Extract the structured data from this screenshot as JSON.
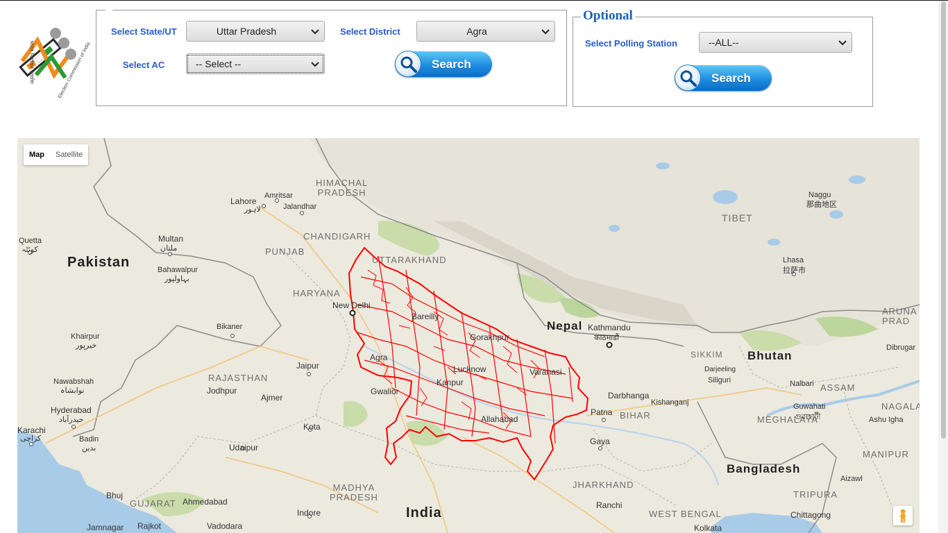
{
  "form": {
    "state_label": "Select State/UT",
    "state_value": "Uttar Pradesh",
    "district_label": "Select District",
    "district_value": "Agra",
    "ac_label": "Select AC",
    "ac_value": "-- Select --",
    "search_label": "Search"
  },
  "optional": {
    "legend": "Optional",
    "polling_label": "Select Polling Station",
    "polling_value": "--ALL--",
    "search_label": "Search"
  },
  "logo": {
    "icon": "eci-logo-icon",
    "text_hindi": "भारत निर्वाचन आयोग",
    "text_english": "Election Commission of India"
  },
  "map": {
    "type_map": "Map",
    "type_satellite": "Satellite",
    "boundary_color": "#ff0000",
    "places": {
      "pakistan": "Pakistan",
      "nepal": "Nepal",
      "bhutan": "Bhutan",
      "india": "India",
      "bangladesh": "Bangladesh",
      "himachal": "HIMACHAL\nPRADESH",
      "chandigarh": "CHANDIGARH",
      "punjab": "PUNJAB",
      "uttarakhand": "UTTARAKHAND",
      "haryana": "HARYANA",
      "rajasthan": "RAJASTHAN",
      "madhya": "MADHYA\nPRADESH",
      "gujarat": "GUJARAT",
      "jharkhand": "JHARKHAND",
      "westbengal": "WEST BENGAL",
      "bihar": "BIHAR",
      "sikkim": "SIKKIM",
      "assam": "ASSAM",
      "meghalaya": "MEGHALAYA",
      "nagaland": "NAGALAND",
      "manipur": "MANIPUR",
      "tripura": "TRIPURA",
      "aruna": "ARUNA\nPRAD",
      "tibet": "TIBET",
      "lahore": "Lahore",
      "lahore_ur": "لاہور",
      "amritsar": "Amritsar",
      "jalandhar": "Jalandhar",
      "multan": "Multan",
      "multan_ur": "ملتان",
      "quetta": "Quetta",
      "quetta_ur": "کوئٹہ",
      "bahawalpur": "Bahawalpur",
      "bahawalpur_ur": "بہاولپور",
      "bikaner": "Bikaner",
      "khairpur": "Khairpur",
      "khairpur_ur": "خیرپور",
      "nawabshah": "Nawabshah",
      "nawabshah_ur": "نوابشاہ",
      "hyderabad": "Hyderabad",
      "hyderabad_ur": "حیدرآباد",
      "karachi": "Karachi",
      "karachi_ur": "کراچی",
      "badin": "Badin",
      "badin_ur": "بدین",
      "jaipur": "Jaipur",
      "jodhpur": "Jodhpur",
      "ajmer": "Ajmer",
      "kota": "Kota",
      "udaipur": "Udaipur",
      "bhuj": "Bhuj",
      "ahmedabad": "Ahmedabad",
      "jamnagar": "Jamnagar",
      "rajkot": "Rajkot",
      "vadodara": "Vadodara",
      "indore": "Indore",
      "gwalior": "Gwalior",
      "newdelhi": "New Delhi",
      "agra": "Agra",
      "kanpur": "Kanpur",
      "lucknow": "Lucknow",
      "gorakhpur": "Gorakhpur",
      "allahabad": "Allahabad",
      "varanasi": "Varanasi",
      "bareilly": "Bareilly",
      "darbhanga": "Darbhanga",
      "patna": "Patna",
      "gaya": "Gaya",
      "ranchi": "Ranchi",
      "kolkata": "Kolkata",
      "kathmandu": "Kathmandu",
      "kathmandu_ne": "काठमाडौं",
      "kishanganj": "Kishanganj",
      "darjeeling": "Darjeeling",
      "siliguri": "Siliguri",
      "nalbari": "Nalbari",
      "guwahati": "Guwahati",
      "guwahati_bn": "গুৱাহাটী",
      "dibrugarh": "Dibrugar",
      "ashuigha": "Ashu Igha",
      "aizawl": "Aizawl",
      "chittagong": "Chittagong",
      "lhasa": "Lhasa",
      "lhasa_zh": "拉萨市",
      "naggu": "Naggu",
      "naggu_zh": "那曲地区"
    }
  }
}
